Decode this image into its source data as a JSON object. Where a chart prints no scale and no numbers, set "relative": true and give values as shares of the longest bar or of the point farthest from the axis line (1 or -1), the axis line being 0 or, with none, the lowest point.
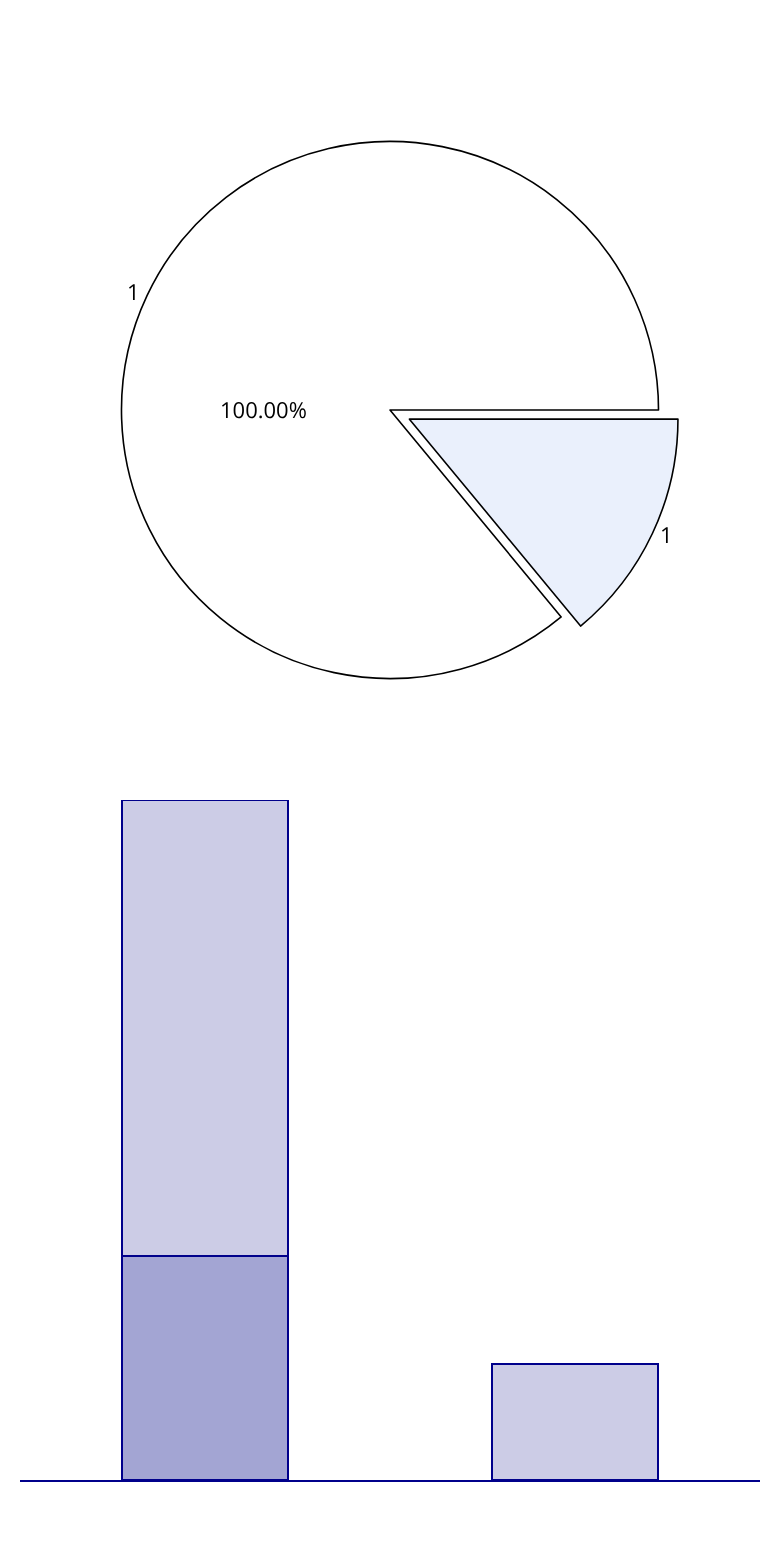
{
  "chart_data": [
    {
      "type": "pie",
      "categories": [
        "1",
        "1"
      ],
      "values": [
        14,
        86
      ],
      "colors": [
        "#eaf0fc",
        "#ffffff"
      ],
      "annotations": [
        "100.00%"
      ],
      "legend": false
    },
    {
      "type": "bar",
      "categories": [
        null,
        null
      ],
      "relative": true,
      "stacked": true,
      "legend": false,
      "series": [
        {
          "color": "#a3a5d3",
          "values": [
            0.33,
            null
          ]
        },
        {
          "color": "#ccccE6",
          "values": [
            0.67,
            0.17
          ]
        }
      ]
    }
  ]
}
